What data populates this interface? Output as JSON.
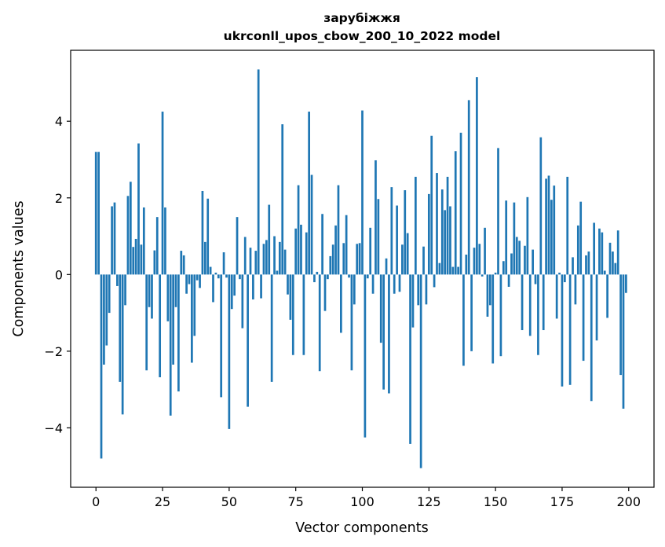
{
  "chart_data": {
    "type": "bar",
    "title_line1": "зарубіжжя",
    "title_line2": "ukrconll_upos_cbow_200_10_2022 model",
    "xlabel": "Vector components",
    "ylabel": "Components values",
    "xlim": [
      -9.5,
      209.5
    ],
    "ylim": [
      -5.55,
      5.85
    ],
    "xticks": [
      0,
      25,
      50,
      75,
      100,
      125,
      150,
      175,
      200
    ],
    "xtick_labels": [
      "0",
      "25",
      "50",
      "75",
      "100",
      "125",
      "150",
      "175",
      "200"
    ],
    "yticks": [
      -4,
      -2,
      0,
      2,
      4
    ],
    "ytick_labels": [
      "−4",
      "−2",
      "0",
      "2",
      "4"
    ],
    "grid": false,
    "bar_color": "#1f77b4",
    "values": [
      3.2,
      3.2,
      -4.8,
      -2.35,
      -1.85,
      -1.0,
      1.78,
      1.88,
      -0.3,
      -2.8,
      -3.65,
      -0.8,
      2.05,
      2.42,
      0.72,
      0.93,
      3.42,
      0.78,
      1.75,
      -2.5,
      -0.85,
      -1.15,
      0.63,
      1.5,
      -2.68,
      4.25,
      1.75,
      -1.22,
      -3.68,
      -2.35,
      -0.85,
      -3.05,
      0.62,
      0.5,
      -0.5,
      -0.25,
      -2.3,
      -1.6,
      -0.15,
      -0.35,
      2.18,
      0.85,
      1.98,
      0.2,
      -0.72,
      0.05,
      -0.1,
      -3.2,
      0.58,
      -0.08,
      -4.03,
      -0.9,
      -0.55,
      1.5,
      -0.12,
      -1.4,
      0.98,
      -3.45,
      0.7,
      -0.65,
      0.62,
      5.35,
      -0.62,
      0.8,
      0.9,
      1.82,
      -2.8,
      1.0,
      0.1,
      0.85,
      3.92,
      0.65,
      -0.52,
      -1.18,
      -2.1,
      1.2,
      2.33,
      1.3,
      -2.1,
      1.1,
      4.25,
      2.6,
      -0.2,
      0.07,
      -2.52,
      1.58,
      -0.95,
      -0.12,
      0.48,
      0.78,
      1.28,
      2.33,
      -1.52,
      0.82,
      1.55,
      -0.08,
      -2.5,
      -0.78,
      0.8,
      0.82,
      4.28,
      -4.25,
      -0.1,
      1.22,
      -0.5,
      2.98,
      1.97,
      -1.78,
      -3.0,
      0.42,
      -3.1,
      2.28,
      -0.5,
      1.8,
      -0.45,
      0.78,
      2.2,
      1.08,
      -4.42,
      -1.38,
      2.55,
      -0.8,
      -5.05,
      0.73,
      -0.78,
      2.1,
      3.62,
      -0.33,
      2.65,
      0.3,
      2.22,
      1.68,
      2.55,
      1.78,
      0.2,
      3.22,
      0.2,
      3.7,
      -2.38,
      0.52,
      4.55,
      -2.0,
      0.7,
      5.15,
      0.8,
      -0.05,
      1.22,
      -1.1,
      -0.8,
      -2.32,
      0.05,
      3.3,
      -2.13,
      0.35,
      1.93,
      -0.32,
      0.55,
      1.88,
      0.98,
      0.88,
      -1.45,
      0.75,
      2.02,
      -1.6,
      0.65,
      -0.25,
      -2.1,
      3.58,
      -1.45,
      2.5,
      2.58,
      1.95,
      2.32,
      -1.15,
      0.05,
      -2.92,
      -0.2,
      2.55,
      -2.88,
      0.45,
      -0.78,
      1.28,
      1.9,
      -2.25,
      0.5,
      0.6,
      -3.3,
      1.35,
      -1.72,
      1.2,
      1.1,
      0.1,
      -1.13,
      0.83,
      0.6,
      0.3,
      1.15,
      -2.62,
      -3.5,
      -0.48
    ]
  }
}
